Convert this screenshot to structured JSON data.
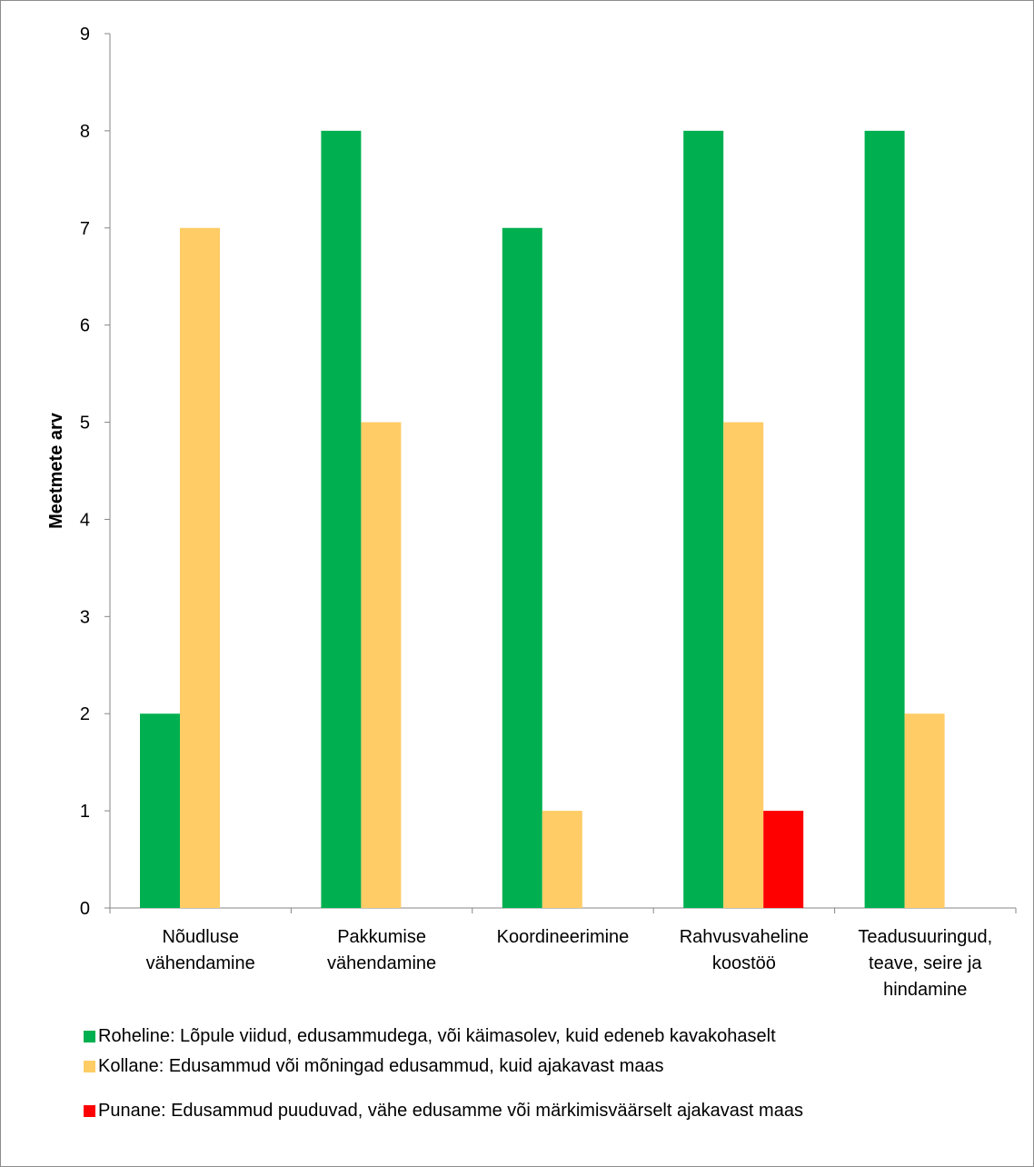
{
  "chart_data": {
    "type": "bar",
    "title": "",
    "xlabel": "",
    "ylabel": "Meetmete arv",
    "ylim": [
      0,
      9
    ],
    "yticks": [
      "0",
      "1",
      "2",
      "3",
      "4",
      "5",
      "6",
      "7",
      "8",
      "9"
    ],
    "grid": false,
    "legend_position": "bottom",
    "categories": [
      [
        "Nõudluse",
        "vähendamine"
      ],
      [
        "Pakkumise",
        "vähendamine"
      ],
      [
        "Koordineerimine"
      ],
      [
        "Rahvusvaheline",
        "koostöö"
      ],
      [
        "Teadusuuringud,",
        "teave, seire ja",
        "hindamine"
      ]
    ],
    "series": [
      {
        "name": "Roheline: Lõpule viidud, edusammudega, või käimasolev, kuid edeneb kavakohaselt",
        "color": "#00b050",
        "values": [
          2,
          8,
          7,
          8,
          8
        ]
      },
      {
        "name": "Kollane: Edusammud või mõningad edusammud, kuid ajakavast maas",
        "color": "#ffcc66",
        "values": [
          7,
          5,
          1,
          5,
          2
        ]
      },
      {
        "name": "Punane: Edusammud puuduvad, vähe edusamme või märkimisväärselt ajakavast maas",
        "color": "#ff0000",
        "values": [
          0,
          0,
          0,
          1,
          0
        ]
      }
    ]
  }
}
